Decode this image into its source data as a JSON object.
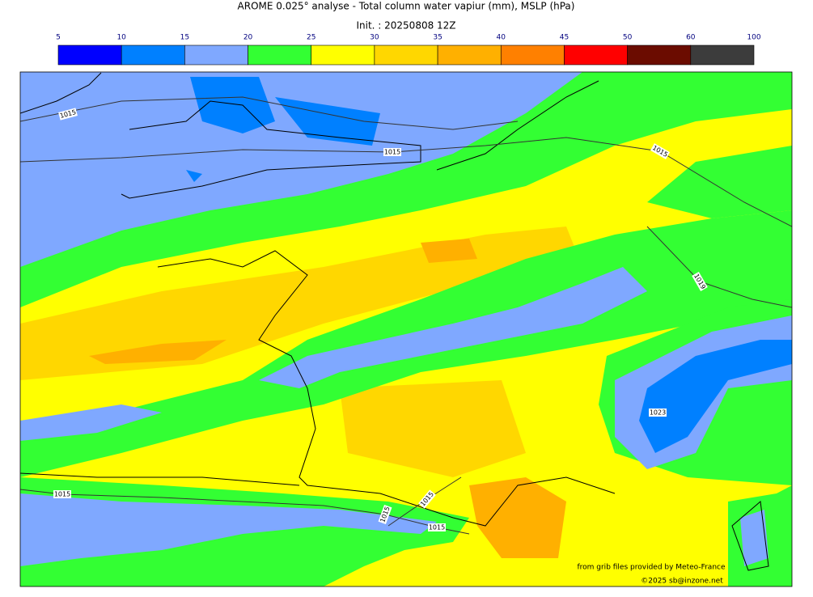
{
  "title": "AROME 0.025° analyse - Total column water vapiur (mm), MSLP (hPa)",
  "subtitle": "Init. : 20250808 12Z",
  "colorbar": {
    "ticks": [
      5,
      10,
      15,
      20,
      25,
      30,
      35,
      40,
      45,
      50,
      60,
      100
    ],
    "colors": [
      "#0000ff",
      "#0080ff",
      "#7fa8ff",
      "#33ff33",
      "#ffff00",
      "#ffd700",
      "#ffb000",
      "#ff8000",
      "#ff0000",
      "#6b0c00",
      "#3c3c3c"
    ]
  },
  "contour_labels": [
    "1015",
    "1015",
    "1015",
    "1019",
    "1023",
    "1015",
    "1015",
    "1015",
    "1015"
  ],
  "credits": [
    "from grib files provided by Meteo-France",
    "©2025 sb@inzone.net"
  ]
}
